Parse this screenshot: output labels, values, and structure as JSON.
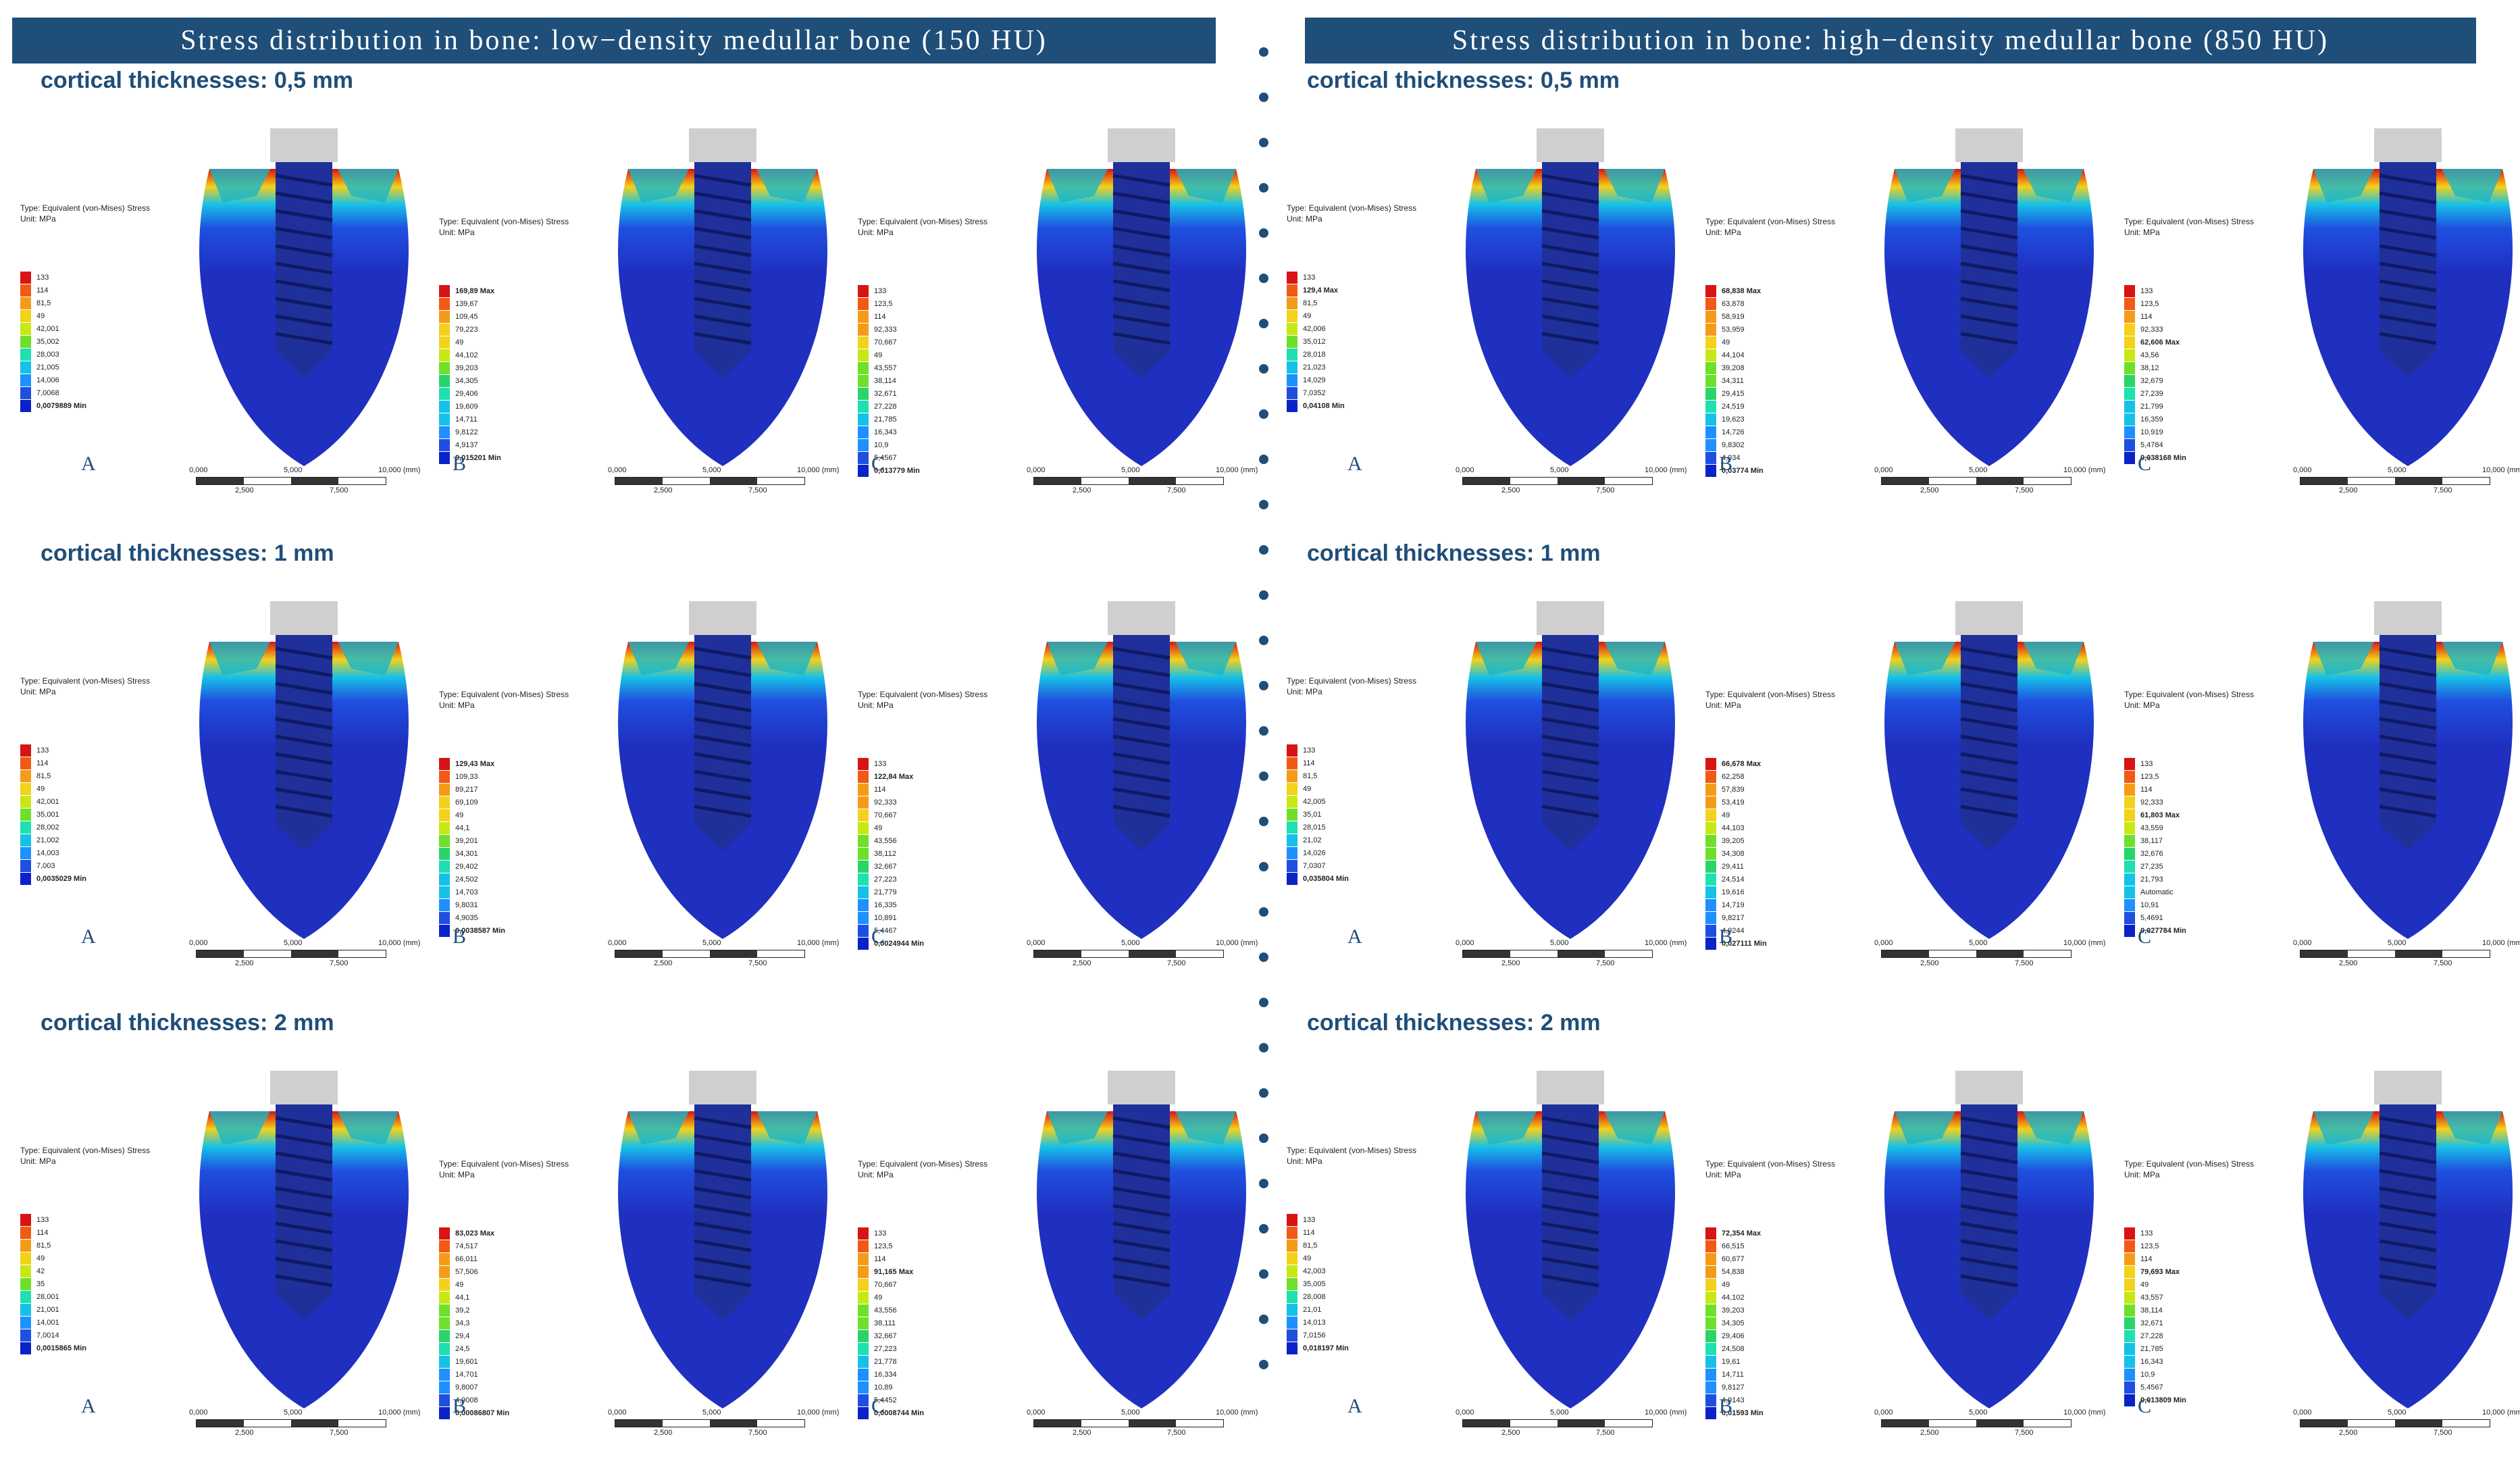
{
  "banners": [
    {
      "text": "Stress distribution in bone: low−density medullar bone (150 HU)"
    },
    {
      "text": "Stress distribution in bone: high−density medullar bone (850 HU)"
    }
  ],
  "colors": {
    "banner": "#1f4e79",
    "bone": "#1f2fbf",
    "implant": "#c9c9c9",
    "accent": "#1f4e79"
  },
  "legend_type": "Type: Equivalent (von-Mises) Stress",
  "legend_unit": "Unit: MPa",
  "ruler": {
    "ticks": [
      "0,000",
      "5,000",
      "10,000 (mm)"
    ],
    "minor": [
      "2,500",
      "7,500"
    ]
  },
  "panels": [
    {
      "title": "cortical thicknesses: 0,5 mm",
      "models": [
        {
          "letter": "A",
          "scale": [
            "133",
            "114",
            "81,5",
            "49",
            "42,001",
            "35,002",
            "28,003",
            "21,005",
            "14,006",
            "7,0068",
            "0,0079889 Min"
          ]
        },
        {
          "letter": "B",
          "scale": [
            "169,89 Max",
            "139,67",
            "109,45",
            "79,223",
            "49",
            "44,102",
            "39,203",
            "34,305",
            "29,406",
            "19,609",
            "14,711",
            "9,8122",
            "4,9137",
            "0,015201 Min"
          ]
        },
        {
          "letter": "C",
          "scale": [
            "133",
            "123,5",
            "114",
            "92,333",
            "70,667",
            "49",
            "43,557",
            "38,114",
            "32,671",
            "27,228",
            "21,785",
            "16,343",
            "10,9",
            "5,4567",
            "0,013779 Min"
          ]
        }
      ]
    },
    {
      "title": "cortical thicknesses: 1 mm",
      "models": [
        {
          "letter": "A",
          "scale": [
            "133",
            "114",
            "81,5",
            "49",
            "42,001",
            "35,001",
            "28,002",
            "21,002",
            "14,003",
            "7,003",
            "0,0035029 Min"
          ]
        },
        {
          "letter": "B",
          "scale": [
            "129,43 Max",
            "109,33",
            "89,217",
            "69,109",
            "49",
            "44,1",
            "39,201",
            "34,301",
            "29,402",
            "24,502",
            "14,703",
            "9,8031",
            "4,9035",
            "0,0038587 Min"
          ]
        },
        {
          "letter": "C",
          "scale": [
            "133",
            "122,84 Max",
            "114",
            "92,333",
            "70,667",
            "49",
            "43,556",
            "38,112",
            "32,667",
            "27,223",
            "21,779",
            "16,335",
            "10,891",
            "5,4467",
            "0,0024944 Min"
          ]
        }
      ]
    },
    {
      "title": "cortical thicknesses: 2 mm",
      "models": [
        {
          "letter": "A",
          "scale": [
            "133",
            "114",
            "81,5",
            "49",
            "42",
            "35",
            "28,001",
            "21,001",
            "14,001",
            "7,0014",
            "0,0015865 Min"
          ]
        },
        {
          "letter": "B",
          "scale": [
            "83,023 Max",
            "74,517",
            "66,011",
            "57,506",
            "49",
            "44,1",
            "39,2",
            "34,3",
            "29,4",
            "24,5",
            "19,601",
            "14,701",
            "9,8007",
            "4,9008",
            "0,00086807 Min"
          ]
        },
        {
          "letter": "C",
          "scale": [
            "133",
            "123,5",
            "114",
            "91,165 Max",
            "70,667",
            "49",
            "43,556",
            "38,111",
            "32,667",
            "27,223",
            "21,778",
            "16,334",
            "10,89",
            "5,4452",
            "0,0008744 Min"
          ]
        }
      ]
    },
    {
      "title": "cortical thicknesses: 0,5 mm",
      "models": [
        {
          "letter": "A",
          "scale": [
            "133",
            "129,4 Max",
            "81,5",
            "49",
            "42,006",
            "35,012",
            "28,018",
            "21,023",
            "14,029",
            "7,0352",
            "0,04108 Min"
          ]
        },
        {
          "letter": "B",
          "scale": [
            "68,838 Max",
            "63,878",
            "58,919",
            "53,959",
            "49",
            "44,104",
            "39,208",
            "34,311",
            "29,415",
            "24,519",
            "19,623",
            "14,726",
            "9,8302",
            "4,934",
            "0,03774 Min"
          ]
        },
        {
          "letter": "C",
          "scale": [
            "133",
            "123,5",
            "114",
            "92,333",
            "62,606 Max",
            "43,56",
            "38,12",
            "32,679",
            "27,239",
            "21,799",
            "16,359",
            "10,919",
            "5,4784",
            "0,038168 Min"
          ]
        }
      ]
    },
    {
      "title": "cortical thicknesses: 1 mm",
      "models": [
        {
          "letter": "A",
          "scale": [
            "133",
            "114",
            "81,5",
            "49",
            "42,005",
            "35,01",
            "28,015",
            "21,02",
            "14,026",
            "7,0307",
            "0,035804 Min"
          ]
        },
        {
          "letter": "B",
          "scale": [
            "66,678 Max",
            "62,258",
            "57,839",
            "53,419",
            "49",
            "44,103",
            "39,205",
            "34,308",
            "29,411",
            "24,514",
            "19,616",
            "14,719",
            "9,8217",
            "4,9244",
            "0,027111 Min"
          ]
        },
        {
          "letter": "C",
          "scale": [
            "133",
            "123,5",
            "114",
            "92,333",
            "61,803 Max",
            "43,559",
            "38,117",
            "32,676",
            "27,235",
            "21,793",
            "Automatic",
            "10,91",
            "5,4691",
            "0,027784 Min"
          ]
        }
      ]
    },
    {
      "title": "cortical thicknesses: 2 mm",
      "models": [
        {
          "letter": "A",
          "scale": [
            "133",
            "114",
            "81,5",
            "49",
            "42,003",
            "35,005",
            "28,008",
            "21,01",
            "14,013",
            "7,0156",
            "0,018197 Min"
          ]
        },
        {
          "letter": "B",
          "scale": [
            "72,354 Max",
            "66,515",
            "60,677",
            "54,838",
            "49",
            "44,102",
            "39,203",
            "34,305",
            "29,406",
            "24,508",
            "19,61",
            "14,711",
            "9,8127",
            "4,9143",
            "0,01593 Min"
          ]
        },
        {
          "letter": "C",
          "scale": [
            "133",
            "123,5",
            "114",
            "79,693 Max",
            "49",
            "43,557",
            "38,114",
            "32,671",
            "27,228",
            "21,785",
            "16,343",
            "10,9",
            "5,4567",
            "0,013809 Min"
          ]
        }
      ]
    }
  ]
}
